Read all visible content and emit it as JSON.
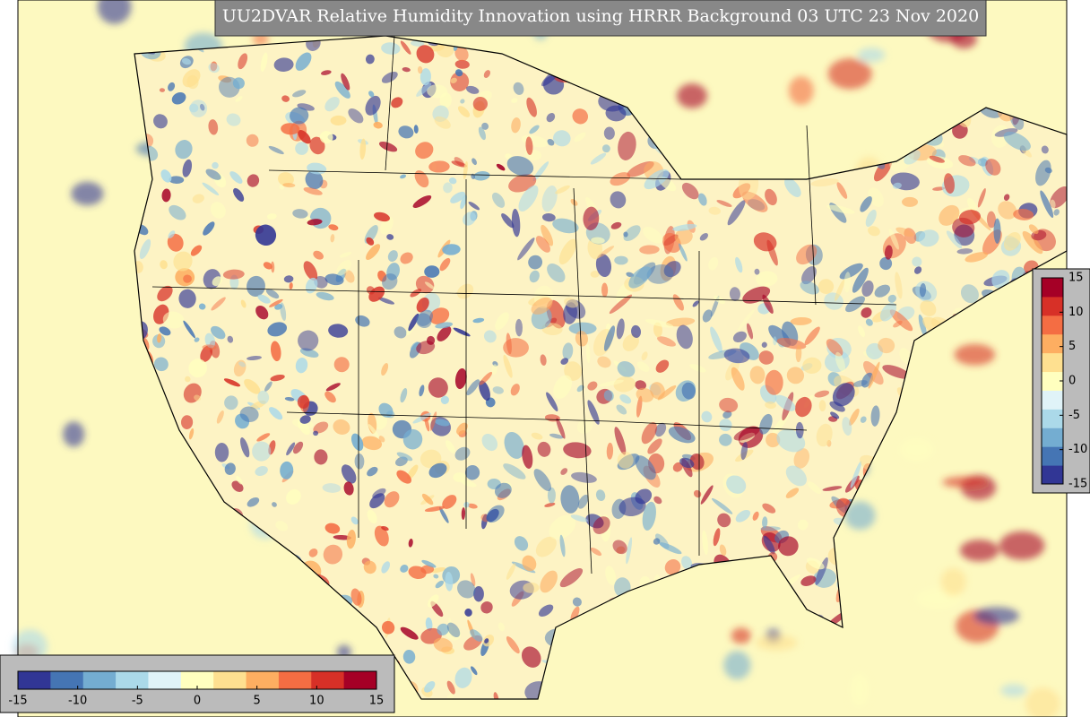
{
  "title": "UU2DVAR Relative Humidity Innovation using HRRR Background 03 UTC 23 Nov 2020",
  "colormap": [
    "#313695",
    "#4575b4",
    "#74add1",
    "#abd9e9",
    "#e0f3f8",
    "#ffffbf",
    "#fee090",
    "#fdae61",
    "#f46d43",
    "#d73027",
    "#a50026"
  ],
  "colorbars": [
    {
      "orientation": "horizontal",
      "lim": [
        -15,
        15
      ],
      "ticks": [
        -15,
        -10,
        -5,
        0,
        5,
        10,
        15
      ]
    },
    {
      "orientation": "vertical",
      "lim": [
        -15,
        15
      ],
      "ticks": [
        -15,
        -10,
        -5,
        0,
        5,
        10,
        15
      ]
    }
  ]
}
